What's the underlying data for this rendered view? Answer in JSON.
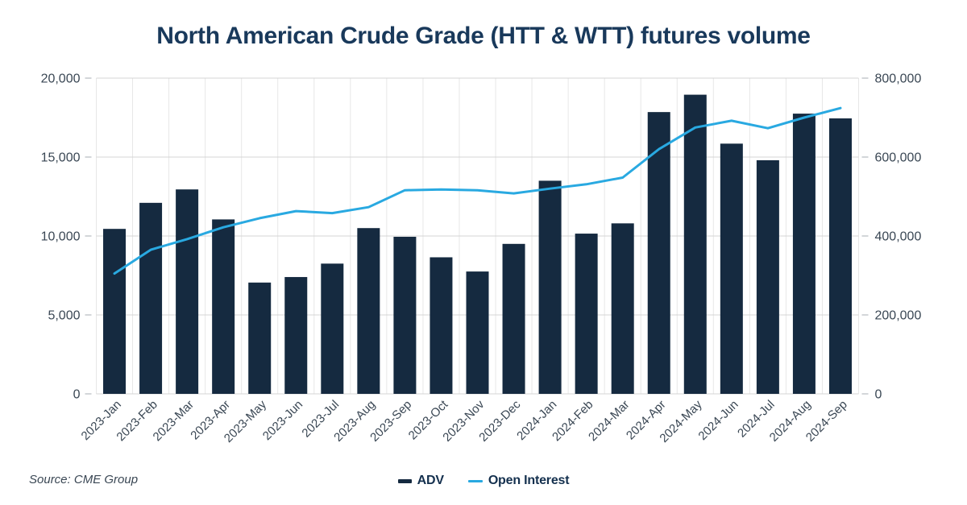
{
  "chart_data": {
    "type": "combo-bar-line",
    "title": "North American Crude Grade (HTT & WTT) futures volume",
    "source": "Source: CME Group",
    "categories": [
      "2023-Jan",
      "2023-Feb",
      "2023-Mar",
      "2023-Apr",
      "2023-May",
      "2023-Jun",
      "2023-Jul",
      "2023-Aug",
      "2023-Sep",
      "2023-Oct",
      "2023-Nov",
      "2023-Dec",
      "2024-Jan",
      "2024-Feb",
      "2024-Mar",
      "2024-Apr",
      "2024-May",
      "2024-Jun",
      "2024-Jul",
      "2024-Aug",
      "2024-Sep"
    ],
    "series": [
      {
        "name": "ADV",
        "type": "bar",
        "axis": "left",
        "color": "#152A40",
        "values": [
          10450,
          12100,
          12950,
          11050,
          7050,
          7400,
          8250,
          10500,
          9950,
          8650,
          7750,
          9500,
          13500,
          10150,
          10800,
          17850,
          18950,
          15850,
          14800,
          17750,
          17450
        ]
      },
      {
        "name": "Open Interest",
        "type": "line",
        "axis": "right",
        "color": "#29A9E1",
        "values": [
          305000,
          365000,
          392000,
          422000,
          445000,
          463000,
          458000,
          473000,
          516000,
          518000,
          516000,
          508000,
          520000,
          531000,
          548000,
          620000,
          675000,
          692000,
          673000,
          700000,
          724000
        ]
      }
    ],
    "left_axis": {
      "min": 0,
      "max": 20000,
      "ticks": [
        0,
        5000,
        10000,
        15000,
        20000
      ],
      "tick_labels": [
        "0",
        "5,000",
        "10,000",
        "15,000",
        "20,000"
      ]
    },
    "right_axis": {
      "min": 0,
      "max": 800000,
      "ticks": [
        0,
        200000,
        400000,
        600000,
        800000
      ],
      "tick_labels": [
        "0",
        "200,000",
        "400,000",
        "600,000",
        "800,000"
      ]
    },
    "grid": {
      "horizontal": true,
      "vertical": true
    },
    "legend_position": "bottom-center"
  },
  "colors": {
    "title_text": "#19395B",
    "axis_text": "#3A4754",
    "hgrid": "#D4D4D4",
    "vgrid": "#E7E7E7",
    "tick": "#C4C8CC"
  }
}
